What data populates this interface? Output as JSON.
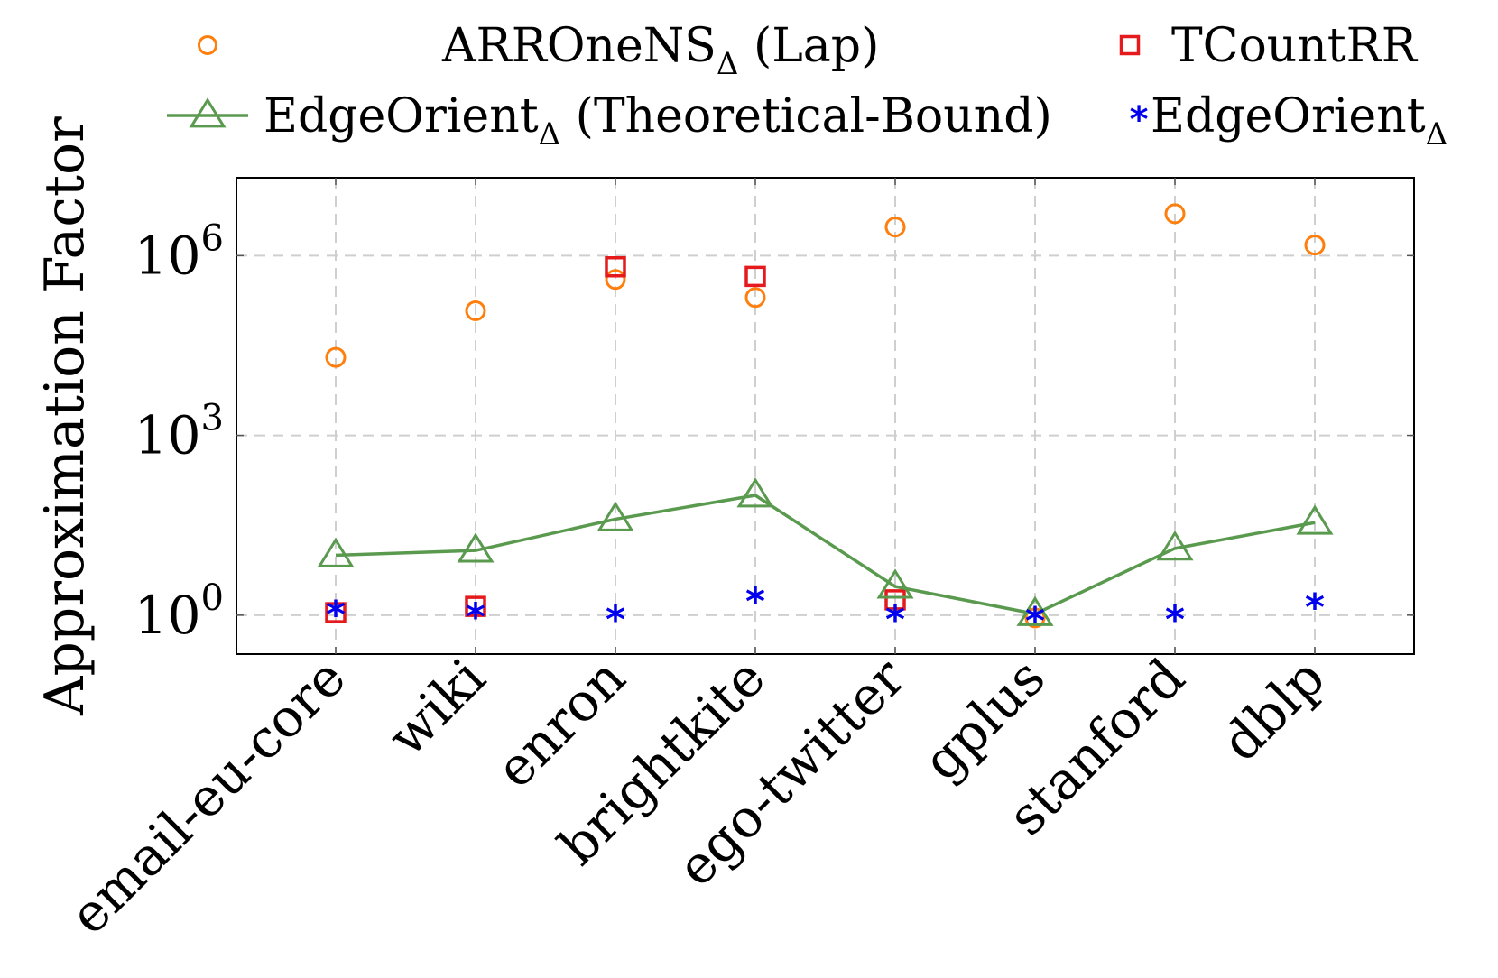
{
  "chart_data": {
    "type": "scatter",
    "categories": [
      "email-eu-core",
      "wiki",
      "enron",
      "brightkite",
      "ego-twitter",
      "gplus",
      "stanford",
      "dblp"
    ],
    "ylabel": "Approximation Factor",
    "yscale": "log",
    "ylim_exponents": [
      -0.65,
      7.3
    ],
    "y_ticks": [
      {
        "base": "10",
        "exp": "0",
        "value": 1
      },
      {
        "base": "10",
        "exp": "3",
        "value": 1000
      },
      {
        "base": "10",
        "exp": "6",
        "value": 1000000
      }
    ],
    "grid": true,
    "legend_position": "top",
    "series": [
      {
        "name": "ARROneNS",
        "name_sub": "Δ",
        "name_suffix": " (Lap)",
        "marker": "circle",
        "color": "#ff7f0e",
        "line": false,
        "values": [
          20000,
          120000,
          400000,
          200000,
          3000000,
          0.9,
          5000000,
          1500000
        ]
      },
      {
        "name": "TCountRR",
        "name_sub": "",
        "name_suffix": "",
        "marker": "square",
        "color": "#e41a1c",
        "line": false,
        "values": [
          1.1,
          1.4,
          650000,
          450000,
          1.8,
          null,
          null,
          null
        ]
      },
      {
        "name": "EdgeOrient",
        "name_sub": "Δ",
        "name_suffix": " (Theoretical-Bound)",
        "marker": "triangle",
        "color": "#5a9a4f",
        "line": true,
        "values": [
          10,
          12,
          40,
          100,
          3,
          1.05,
          13,
          35
        ]
      },
      {
        "name": "EdgeOrient",
        "name_sub": "Δ",
        "name_suffix": "",
        "marker": "star",
        "color": "#0000ee",
        "line": false,
        "values": [
          1.2,
          1.1,
          1.0,
          2.0,
          1.0,
          0.95,
          1.0,
          1.6
        ]
      }
    ]
  }
}
